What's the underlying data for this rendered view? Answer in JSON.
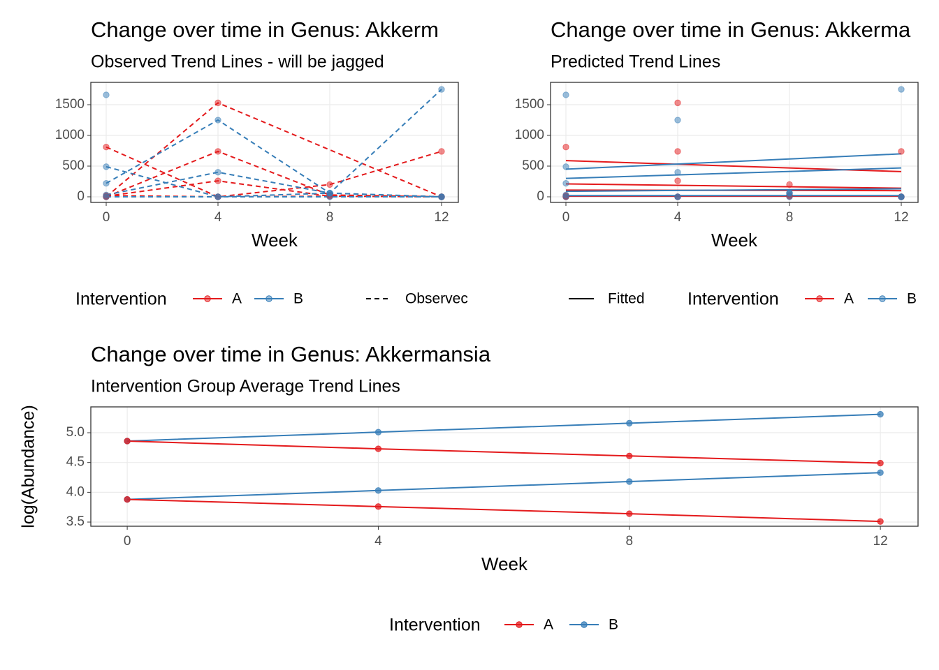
{
  "chart_data": [
    {
      "type": "line",
      "title": "Change over time in Genus: Akkerm",
      "subtitle": "Observed Trend Lines - will be jagged",
      "xlabel": "Week",
      "xlim": [
        -0.55,
        12.6
      ],
      "xticks": [
        0,
        4,
        8,
        12
      ],
      "ylim": [
        -91,
        1864
      ],
      "yticks": [
        0,
        500,
        1000,
        1500
      ],
      "grid": true,
      "point_opacity": 0.5,
      "legend": {
        "title": "Intervention",
        "entries": [
          {
            "name": "A",
            "color": "#E41A1C"
          },
          {
            "name": "B",
            "color": "#377EB8"
          }
        ],
        "linetype": {
          "label": "Observec",
          "linestyle": "dashed"
        }
      },
      "series": [
        {
          "color": "#E41A1C",
          "linestyle": "dashed",
          "markers": true,
          "x": [
            0,
            4,
            8,
            12
          ],
          "values": [
            810,
            0,
            200,
            740
          ]
        },
        {
          "color": "#E41A1C",
          "linestyle": "dashed",
          "markers": true,
          "x": [
            0,
            4,
            12
          ],
          "values": [
            0,
            1530,
            0
          ]
        },
        {
          "color": "#E41A1C",
          "linestyle": "dashed",
          "markers": true,
          "x": [
            0,
            4,
            8,
            12
          ],
          "values": [
            0,
            740,
            30,
            0
          ]
        },
        {
          "color": "#E41A1C",
          "linestyle": "dashed",
          "markers": true,
          "x": [
            0,
            4,
            8,
            12
          ],
          "values": [
            10,
            260,
            10,
            0
          ]
        },
        {
          "color": "#E41A1C",
          "linestyle": "dashed",
          "markers": true,
          "x": [
            0,
            4,
            8,
            12
          ],
          "values": [
            20,
            0,
            10,
            0
          ]
        },
        {
          "color": "#377EB8",
          "linestyle": "dashed",
          "markers": true,
          "x": [
            0
          ],
          "values": [
            1660
          ]
        },
        {
          "color": "#377EB8",
          "linestyle": "dashed",
          "markers": true,
          "x": [
            0,
            4,
            8,
            12
          ],
          "values": [
            490,
            0,
            60,
            0
          ]
        },
        {
          "color": "#377EB8",
          "linestyle": "dashed",
          "markers": true,
          "x": [
            0,
            4,
            8,
            12
          ],
          "values": [
            220,
            1250,
            60,
            1750
          ]
        },
        {
          "color": "#377EB8",
          "linestyle": "dashed",
          "markers": true,
          "x": [
            0,
            4,
            8,
            12
          ],
          "values": [
            30,
            400,
            60,
            0
          ]
        },
        {
          "color": "#377EB8",
          "linestyle": "dashed",
          "markers": true,
          "x": [
            0,
            4,
            8,
            12
          ],
          "values": [
            0,
            0,
            0,
            0
          ]
        }
      ]
    },
    {
      "type": "line",
      "title": "Change over time in Genus: Akkerma",
      "subtitle": "Predicted Trend Lines",
      "xlabel": "Week",
      "xlim": [
        -0.55,
        12.6
      ],
      "xticks": [
        0,
        4,
        8,
        12
      ],
      "ylim": [
        -91,
        1864
      ],
      "yticks": [
        0,
        500,
        1000,
        1500
      ],
      "grid": true,
      "point_opacity": 0.5,
      "legend": {
        "title": "Intervention",
        "entries": [
          {
            "name": "A",
            "color": "#E41A1C"
          },
          {
            "name": "B",
            "color": "#377EB8"
          }
        ],
        "linetype": {
          "label": "Fitted",
          "linestyle": "solid"
        }
      },
      "series": [
        {
          "color": "#E41A1C",
          "linestyle": "none",
          "markers": true,
          "x": [
            0,
            4,
            8,
            12
          ],
          "values": [
            810,
            0,
            200,
            740
          ]
        },
        {
          "color": "#E41A1C",
          "linestyle": "none",
          "markers": true,
          "x": [
            0,
            4,
            12
          ],
          "values": [
            0,
            1530,
            0
          ]
        },
        {
          "color": "#E41A1C",
          "linestyle": "none",
          "markers": true,
          "x": [
            0,
            4,
            8,
            12
          ],
          "values": [
            0,
            740,
            30,
            0
          ]
        },
        {
          "color": "#E41A1C",
          "linestyle": "none",
          "markers": true,
          "x": [
            0,
            4,
            8,
            12
          ],
          "values": [
            10,
            260,
            10,
            0
          ]
        },
        {
          "color": "#E41A1C",
          "linestyle": "none",
          "markers": true,
          "x": [
            0,
            4,
            8,
            12
          ],
          "values": [
            20,
            0,
            10,
            0
          ]
        },
        {
          "color": "#377EB8",
          "linestyle": "none",
          "markers": true,
          "x": [
            0
          ],
          "values": [
            1660
          ]
        },
        {
          "color": "#377EB8",
          "linestyle": "none",
          "markers": true,
          "x": [
            0,
            4,
            8,
            12
          ],
          "values": [
            490,
            0,
            60,
            0
          ]
        },
        {
          "color": "#377EB8",
          "linestyle": "none",
          "markers": true,
          "x": [
            0,
            4,
            8,
            12
          ],
          "values": [
            220,
            1250,
            60,
            1750
          ]
        },
        {
          "color": "#377EB8",
          "linestyle": "none",
          "markers": true,
          "x": [
            0,
            4,
            8,
            12
          ],
          "values": [
            30,
            400,
            60,
            0
          ]
        },
        {
          "color": "#377EB8",
          "linestyle": "none",
          "markers": true,
          "x": [
            0,
            4,
            8,
            12
          ],
          "values": [
            0,
            0,
            0,
            0
          ]
        },
        {
          "color": "#E41A1C",
          "linestyle": "solid",
          "markers": false,
          "x": [
            0,
            12
          ],
          "values": [
            590,
            410
          ]
        },
        {
          "color": "#E41A1C",
          "linestyle": "solid",
          "markers": false,
          "x": [
            0,
            12
          ],
          "values": [
            210,
            140
          ]
        },
        {
          "color": "#E41A1C",
          "linestyle": "solid",
          "markers": false,
          "x": [
            0,
            12
          ],
          "values": [
            110,
            100
          ]
        },
        {
          "color": "#E41A1C",
          "linestyle": "solid",
          "markers": false,
          "x": [
            0,
            12
          ],
          "values": [
            10,
            10
          ]
        },
        {
          "color": "#377EB8",
          "linestyle": "solid",
          "markers": false,
          "x": [
            0,
            12
          ],
          "values": [
            450,
            700
          ]
        },
        {
          "color": "#377EB8",
          "linestyle": "solid",
          "markers": false,
          "x": [
            0,
            12
          ],
          "values": [
            300,
            470
          ]
        },
        {
          "color": "#377EB8",
          "linestyle": "solid",
          "markers": false,
          "x": [
            0,
            12
          ],
          "values": [
            90,
            130
          ]
        },
        {
          "color": "#377EB8",
          "linestyle": "solid",
          "markers": false,
          "x": [
            0,
            12
          ],
          "values": [
            20,
            20
          ]
        }
      ]
    },
    {
      "type": "line",
      "title": "Change over time in Genus: Akkermansia",
      "subtitle": "Intervention Group Average Trend Lines",
      "xlabel": "Week",
      "ylabel": "log(Abundance)",
      "xlim": [
        -0.58,
        12.6
      ],
      "xticks": [
        0,
        4,
        8,
        12
      ],
      "ylim": [
        3.43,
        5.434
      ],
      "yticks": [
        3.5,
        {
          "value": 4,
          "label": "4.0"
        },
        4.5,
        {
          "value": 5,
          "label": "5.0"
        }
      ],
      "grid": true,
      "point_opacity": 0.75,
      "legend": {
        "title": "Intervention",
        "entries": [
          {
            "name": "A",
            "color": "#E41A1C"
          },
          {
            "name": "B",
            "color": "#377EB8"
          }
        ]
      },
      "series": [
        {
          "color": "#377EB8",
          "linestyle": "solid",
          "markers": true,
          "x": [
            0,
            4,
            8,
            12
          ],
          "values": [
            4.86,
            5.01,
            5.16,
            5.31
          ]
        },
        {
          "color": "#E41A1C",
          "linestyle": "solid",
          "markers": true,
          "x": [
            0,
            4,
            8,
            12
          ],
          "values": [
            4.86,
            4.73,
            4.61,
            4.49
          ]
        },
        {
          "color": "#377EB8",
          "linestyle": "solid",
          "markers": true,
          "x": [
            0,
            4,
            8,
            12
          ],
          "values": [
            3.88,
            4.03,
            4.18,
            4.33
          ]
        },
        {
          "color": "#E41A1C",
          "linestyle": "solid",
          "markers": true,
          "x": [
            0,
            4,
            8,
            12
          ],
          "values": [
            3.88,
            3.76,
            3.64,
            3.51
          ]
        }
      ]
    }
  ]
}
